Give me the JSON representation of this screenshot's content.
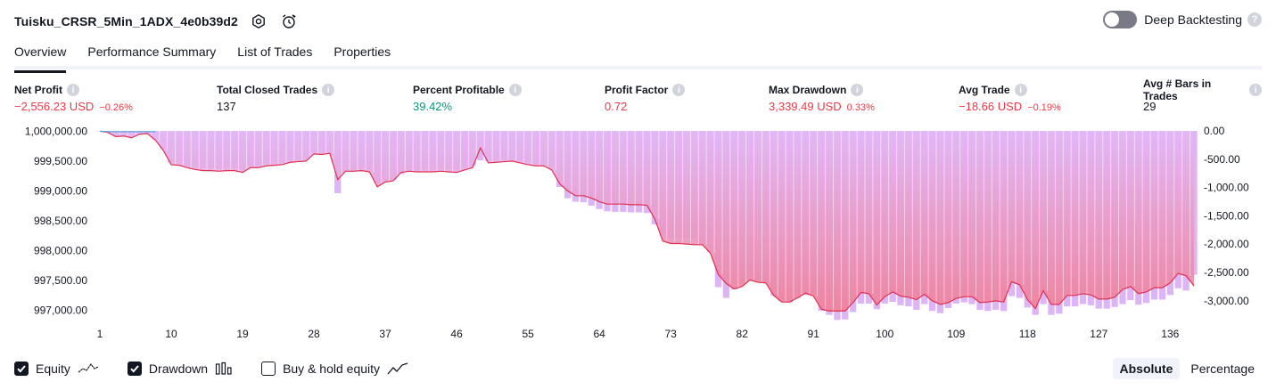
{
  "header": {
    "title": "Tuisku_CRSR_5Min_1ADX_4e0b39d2",
    "deep_backtesting_label": "Deep Backtesting",
    "deep_backtesting_enabled": false
  },
  "tabs": [
    {
      "label": "Overview",
      "active": true
    },
    {
      "label": "Performance Summary",
      "active": false
    },
    {
      "label": "List of Trades",
      "active": false
    },
    {
      "label": "Properties",
      "active": false
    }
  ],
  "metrics": [
    {
      "label": "Net Profit",
      "value": "−2,556.23 USD",
      "sub": "−0.26%",
      "tone": "neg"
    },
    {
      "label": "Total Closed Trades",
      "value": "137",
      "sub": "",
      "tone": "plain"
    },
    {
      "label": "Percent Profitable",
      "value": "39.42%",
      "sub": "",
      "tone": "pos"
    },
    {
      "label": "Profit Factor",
      "value": "0.72",
      "sub": "",
      "tone": "neg"
    },
    {
      "label": "Max Drawdown",
      "value": "3,339.49 USD",
      "sub": "0.33%",
      "tone": "neg"
    },
    {
      "label": "Avg Trade",
      "value": "−18.66 USD",
      "sub": "−0.19%",
      "tone": "neg"
    },
    {
      "label": "Avg # Bars in Trades",
      "value": "29",
      "sub": "",
      "tone": "plain"
    }
  ],
  "colors": {
    "negative": "#f23645",
    "positive": "#089981",
    "equity_line": "#e0304f",
    "equity_fill_top": "#e3b7f7",
    "equity_fill_bottom": "#f07f98",
    "drawdown_bar": "#d7a8f5",
    "initial_equity_line": "#5aa7df"
  },
  "chart_data": {
    "type": "area",
    "x_ticks": [
      1,
      10,
      19,
      28,
      37,
      46,
      55,
      64,
      73,
      82,
      91,
      100,
      109,
      118,
      127,
      136
    ],
    "left_axis": {
      "ticks": [
        "1,000,000.00",
        "999,500.00",
        "999,000.00",
        "998,500.00",
        "998,000.00",
        "997,500.00",
        "997,000.00"
      ],
      "ylim": [
        996830,
        1000080
      ]
    },
    "right_axis": {
      "ticks": [
        "0.00",
        "-500.00",
        "-1,000.00",
        "-1,500.00",
        "-2,000.00",
        "-2,500.00",
        "-3,000.00"
      ],
      "ylim": [
        -3350,
        80
      ]
    },
    "series": [
      {
        "name": "Equity",
        "values": [
          1000000,
          999980,
          999910,
          999920,
          999890,
          999950,
          999960,
          999850,
          999680,
          999440,
          999430,
          999390,
          999360,
          999340,
          999340,
          999330,
          999340,
          999340,
          999310,
          999390,
          999390,
          999420,
          999430,
          999440,
          999480,
          999490,
          999500,
          999620,
          999610,
          999630,
          999190,
          999330,
          999330,
          999340,
          999320,
          999070,
          999150,
          999170,
          999310,
          999330,
          999320,
          999320,
          999320,
          999330,
          999320,
          999310,
          999350,
          999390,
          999720,
          999470,
          999480,
          999490,
          999500,
          999470,
          999440,
          999420,
          999420,
          999350,
          999120,
          999000,
          998920,
          998920,
          998880,
          998820,
          998780,
          998780,
          998780,
          998770,
          998770,
          998760,
          998530,
          998160,
          998120,
          998120,
          998110,
          998100,
          998100,
          997960,
          997600,
          997450,
          997360,
          997400,
          997510,
          997470,
          997460,
          997250,
          997140,
          997140,
          997210,
          997290,
          997240,
          997020,
          996990,
          996990,
          996990,
          997130,
          997300,
          997280,
          997090,
          997230,
          997310,
          997240,
          997220,
          997180,
          997270,
          997160,
          997100,
          997130,
          997200,
          997230,
          997230,
          997130,
          997140,
          997160,
          997140,
          997480,
          997430,
          997180,
          997030,
          997330,
          997100,
          997100,
          997250,
          997250,
          997280,
          997260,
          997190,
          997190,
          997220,
          997350,
          997400,
          997280,
          997310,
          997380,
          997380,
          997460,
          997620,
          997580,
          997410
        ]
      },
      {
        "name": "Drawdown",
        "values": [
          0,
          -20,
          -90,
          -80,
          -110,
          -50,
          -40,
          -150,
          -320,
          -560,
          -570,
          -610,
          -640,
          -660,
          -660,
          -670,
          -660,
          -660,
          -690,
          -610,
          -610,
          -580,
          -570,
          -560,
          -520,
          -510,
          -500,
          -380,
          -390,
          -370,
          -1100,
          -720,
          -690,
          -660,
          -700,
          -920,
          -870,
          -860,
          -760,
          -720,
          -700,
          -680,
          -680,
          -670,
          -680,
          -690,
          -650,
          -610,
          -520,
          -530,
          -520,
          -510,
          -500,
          -530,
          -560,
          -580,
          -580,
          -650,
          -990,
          -1190,
          -1250,
          -1260,
          -1320,
          -1380,
          -1420,
          -1430,
          -1430,
          -1440,
          -1440,
          -1450,
          -1650,
          -1850,
          -1880,
          -1880,
          -1890,
          -1900,
          -2000,
          -2140,
          -2760,
          -2950,
          -2800,
          -2700,
          -2620,
          -2650,
          -2680,
          -2910,
          -3000,
          -3030,
          -2950,
          -2900,
          -2880,
          -3180,
          -3250,
          -3339.49,
          -3330,
          -3200,
          -3050,
          -3050,
          -3150,
          -3050,
          -3020,
          -3080,
          -3100,
          -3160,
          -3060,
          -3180,
          -3220,
          -3130,
          -3050,
          -3030,
          -3060,
          -3160,
          -3180,
          -3160,
          -3180,
          -2920,
          -2950,
          -3120,
          -3250,
          -3060,
          -3250,
          -3230,
          -3100,
          -3100,
          -3060,
          -3080,
          -3140,
          -3140,
          -3110,
          -3060,
          -2990,
          -3070,
          -3040,
          -2980,
          -2980,
          -2900,
          -2780,
          -2820,
          -2540
        ]
      }
    ]
  },
  "legend": [
    {
      "label": "Equity",
      "checked": true,
      "icon": "equity-line-icon"
    },
    {
      "label": "Drawdown",
      "checked": true,
      "icon": "drawdown-bars-icon"
    },
    {
      "label": "Buy & hold equity",
      "checked": false,
      "icon": "buy-hold-line-icon"
    }
  ],
  "display_mode": {
    "options": [
      "Absolute",
      "Percentage"
    ],
    "selected": "Absolute"
  }
}
